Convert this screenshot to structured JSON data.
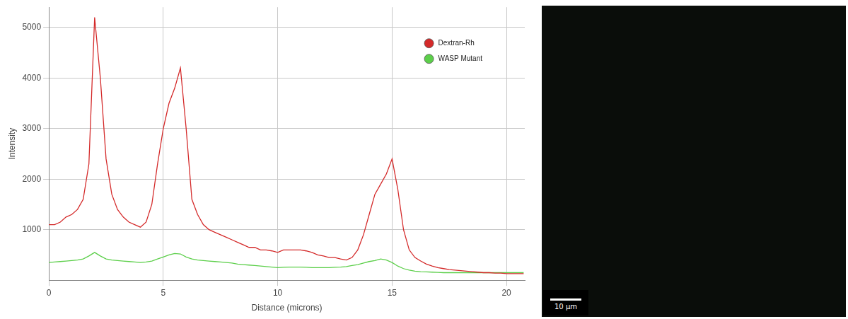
{
  "chart_data": {
    "type": "line",
    "x_label": "Distance (microns)",
    "y_label": "Intensity",
    "xlim": [
      0,
      20.8
    ],
    "xticks": [
      0,
      5,
      10,
      15,
      20
    ],
    "ylim": [
      0,
      5400
    ],
    "yticks": [
      1000,
      2000,
      3000,
      4000,
      5000
    ],
    "grid": true,
    "legend": "upper right",
    "x": [
      0,
      0.25,
      0.5,
      0.75,
      1,
      1.25,
      1.5,
      1.75,
      2,
      2.25,
      2.5,
      2.75,
      3,
      3.25,
      3.5,
      3.75,
      4,
      4.25,
      4.5,
      4.75,
      5,
      5.25,
      5.5,
      5.75,
      6,
      6.25,
      6.5,
      6.75,
      7,
      7.25,
      7.5,
      7.75,
      8,
      8.25,
      8.5,
      8.75,
      9,
      9.25,
      9.5,
      9.75,
      10,
      10.25,
      10.5,
      10.75,
      11,
      11.25,
      11.5,
      11.75,
      12,
      12.25,
      12.5,
      12.75,
      13,
      13.25,
      13.5,
      13.75,
      14,
      14.25,
      14.5,
      14.75,
      15,
      15.25,
      15.5,
      15.75,
      16,
      16.25,
      16.5,
      16.75,
      17,
      17.25,
      17.5,
      17.75,
      18,
      18.25,
      18.5,
      18.75,
      19,
      19.25,
      19.5,
      19.75,
      20,
      20.25,
      20.5,
      20.75
    ],
    "series": [
      {
        "name": "Dextran-Rh",
        "color": "#d42a2a",
        "marker": "circle",
        "values": [
          1100,
          1100,
          1150,
          1250,
          1300,
          1400,
          1600,
          2300,
          5200,
          4000,
          2400,
          1700,
          1400,
          1250,
          1150,
          1100,
          1050,
          1150,
          1500,
          2300,
          3000,
          3500,
          3800,
          4200,
          3000,
          1600,
          1300,
          1100,
          1000,
          950,
          900,
          850,
          800,
          750,
          700,
          650,
          650,
          600,
          600,
          580,
          550,
          600,
          600,
          600,
          600,
          580,
          550,
          500,
          480,
          450,
          450,
          420,
          400,
          450,
          600,
          900,
          1300,
          1700,
          1900,
          2100,
          2400,
          1800,
          1000,
          600,
          450,
          380,
          320,
          280,
          250,
          230,
          210,
          200,
          190,
          180,
          170,
          160,
          150,
          150,
          140,
          140,
          130,
          130,
          130,
          130
        ]
      },
      {
        "name": "WASP Mutant",
        "color": "#5ccf4a",
        "marker": "circle",
        "values": [
          350,
          360,
          370,
          380,
          390,
          400,
          420,
          480,
          550,
          480,
          420,
          400,
          390,
          380,
          370,
          360,
          350,
          360,
          380,
          420,
          460,
          500,
          530,
          520,
          460,
          420,
          400,
          390,
          380,
          370,
          360,
          350,
          340,
          320,
          310,
          300,
          290,
          280,
          270,
          260,
          250,
          255,
          260,
          260,
          260,
          255,
          250,
          250,
          250,
          250,
          255,
          260,
          270,
          290,
          310,
          340,
          370,
          390,
          420,
          400,
          350,
          280,
          230,
          200,
          180,
          170,
          165,
          160,
          155,
          150,
          150,
          150,
          150,
          150,
          150,
          150,
          150,
          150,
          150,
          150,
          150,
          150,
          150,
          150
        ]
      }
    ]
  },
  "image": {
    "scale_bar": "10 µm"
  }
}
